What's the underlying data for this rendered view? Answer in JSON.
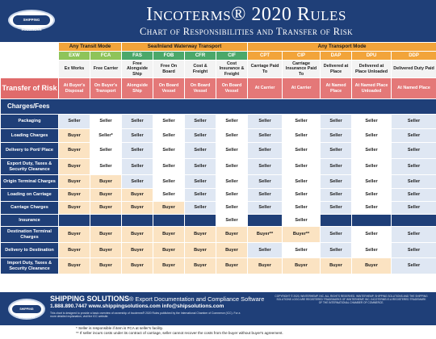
{
  "header": {
    "title": "Incoterms® 2020 Rules",
    "subtitle": "Chart of Responsibilities and Transfer of Risk",
    "logo_text": "SHIPPING SOLUTIONS"
  },
  "modes": [
    "Any Transit Mode",
    "Sea/Inland Waterway Transport",
    "Any Transport Mode"
  ],
  "terms": [
    {
      "code": "EXW",
      "name": "Ex Works",
      "risk": "At Buyer's Disposal"
    },
    {
      "code": "FCA",
      "name": "Free Carrier",
      "risk": "On Buyer's Transport"
    },
    {
      "code": "FAS",
      "name": "Free Alongside Ship",
      "risk": "Alongside Ship"
    },
    {
      "code": "FOB",
      "name": "Free On Board",
      "risk": "On Board Vessel"
    },
    {
      "code": "CFR",
      "name": "Cost & Freight",
      "risk": "On Board Vessel"
    },
    {
      "code": "CIF",
      "name": "Cost Insurance & Freight",
      "risk": "On Board Vessel"
    },
    {
      "code": "CPT",
      "name": "Carriage Paid To",
      "risk": "At Carrier"
    },
    {
      "code": "CIP",
      "name": "Carriage Insurance Paid To",
      "risk": "At Carrier"
    },
    {
      "code": "DAP",
      "name": "Delivered at Place",
      "risk": "At Named Place"
    },
    {
      "code": "DPU",
      "name": "Delivered at Place Unloaded",
      "risk": "At Named Place Unloaded"
    },
    {
      "code": "DDP",
      "name": "Delivered Duty Paid",
      "risk": "At Named Place"
    }
  ],
  "risk_label": "Transfer of Risk",
  "charges_label": "Charges/Fees",
  "rows": [
    {
      "label": "Packaging",
      "cells": [
        "Seller",
        "Seller",
        "Seller",
        "Seller",
        "Seller",
        "Seller",
        "Seller",
        "Seller",
        "Seller",
        "Seller",
        "Seller"
      ]
    },
    {
      "label": "Loading Charges",
      "cells": [
        "Buyer",
        "Seller*",
        "Seller",
        "Seller",
        "Seller",
        "Seller",
        "Seller",
        "Seller",
        "Seller",
        "Seller",
        "Seller"
      ]
    },
    {
      "label": "Delivery to Port/ Place",
      "cells": [
        "Buyer",
        "Seller",
        "Seller",
        "Seller",
        "Seller",
        "Seller",
        "Seller",
        "Seller",
        "Seller",
        "Seller",
        "Seller"
      ]
    },
    {
      "label": "Export Duty, Taxes & Security Clearance",
      "cells": [
        "Buyer",
        "Seller",
        "Seller",
        "Seller",
        "Seller",
        "Seller",
        "Seller",
        "Seller",
        "Seller",
        "Seller",
        "Seller"
      ]
    },
    {
      "label": "Origin Terminal Charges",
      "cells": [
        "Buyer",
        "Buyer",
        "Seller",
        "Seller",
        "Seller",
        "Seller",
        "Seller",
        "Seller",
        "Seller",
        "Seller",
        "Seller"
      ]
    },
    {
      "label": "Loading on Carriage",
      "cells": [
        "Buyer",
        "Buyer",
        "Buyer",
        "Seller",
        "Seller",
        "Seller",
        "Seller",
        "Seller",
        "Seller",
        "Seller",
        "Seller"
      ]
    },
    {
      "label": "Carriage Charges",
      "cells": [
        "Buyer",
        "Buyer",
        "Buyer",
        "Buyer",
        "Seller",
        "Seller",
        "Seller",
        "Seller",
        "Seller",
        "Seller",
        "Seller"
      ]
    },
    {
      "label": "Insurance",
      "cells": [
        "",
        "",
        "",
        "",
        "",
        "Seller",
        "",
        "Seller",
        "",
        "",
        ""
      ]
    },
    {
      "label": "Destination Terminal Charges",
      "cells": [
        "Buyer",
        "Buyer",
        "Buyer",
        "Buyer",
        "Buyer",
        "Buyer",
        "Buyer**",
        "Buyer**",
        "Seller",
        "Seller",
        "Seller"
      ]
    },
    {
      "label": "Delivery to Destination",
      "cells": [
        "Buyer",
        "Buyer",
        "Buyer",
        "Buyer",
        "Buyer",
        "Buyer",
        "Seller",
        "Seller",
        "Seller",
        "Seller",
        "Seller"
      ]
    },
    {
      "label": "Import Duty, Taxes & Security Clearance",
      "cells": [
        "Buyer",
        "Buyer",
        "Buyer",
        "Buyer",
        "Buyer",
        "Buyer",
        "Buyer",
        "Buyer",
        "Buyer",
        "Buyer",
        "Seller"
      ]
    }
  ],
  "footer": {
    "brand": "SHIPPING SOLUTIONS",
    "brand_tail": "® Export Documentation and Compliance Software",
    "contact": "1.888.890.7447   www.shippingsolutions.com   info@shipsolutions.com",
    "note": "This chart is designed to provide a basic overview of ownership of Incoterms® 2020 Rules published by the International Chamber of Commerce (ICC). For a more detailed explanation, visit the ICC website.",
    "copyright": "COPYRIGHT © 2020, WINTERHEMP. INC. ALL RIGHTS RESERVED. WINTERHEMP, SHIPPING SOLUTIONS AND THE SHIPPING SOLUTIONS LOGO ARE REGISTERED TRADEMARKS OF WINTERHEMP, INC. INCOTERMS IS A REGISTERED TRADEMARK OF THE INTERNATIONAL CHAMBER OF COMMERCE."
  },
  "footnotes": [
    "* Seller is responsible if item is FCA at seller's facility.",
    "** If seller incurs costs under its contract of carriage, seller cannot recover the costs from the buyer without buyer's agreement."
  ],
  "colors": {
    "navy": "#1f3f78",
    "orange": "#f2a43a",
    "green_light": "#8ec45a",
    "green_dark": "#4ba86a",
    "risk_red": "#e47878",
    "seller_blue": "#dfe7f3",
    "buyer_peach": "#fbe3c2"
  }
}
